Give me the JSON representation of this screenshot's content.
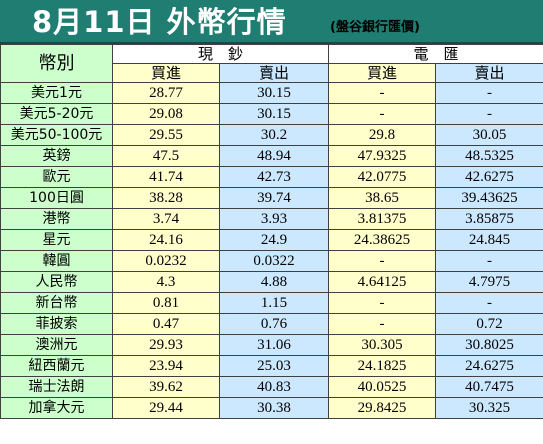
{
  "header": {
    "title": "8月11日 外幣行情",
    "subtitle": "(盤谷銀行匯價)"
  },
  "table": {
    "currency_header": "幣別",
    "groups": [
      "現　鈔",
      "電　匯"
    ],
    "subheaders": [
      "買進",
      "賣出",
      "買進",
      "賣出"
    ],
    "rows": [
      {
        "currency": "美元1元",
        "cash_buy": "28.77",
        "cash_sell": "30.15",
        "tt_buy": "-",
        "tt_sell": "-"
      },
      {
        "currency": "美元5-20元",
        "cash_buy": "29.08",
        "cash_sell": "30.15",
        "tt_buy": "-",
        "tt_sell": "-"
      },
      {
        "currency": "美元50-100元",
        "cash_buy": "29.55",
        "cash_sell": "30.2",
        "tt_buy": "29.8",
        "tt_sell": "30.05"
      },
      {
        "currency": "英鎊",
        "cash_buy": "47.5",
        "cash_sell": "48.94",
        "tt_buy": "47.9325",
        "tt_sell": "48.5325"
      },
      {
        "currency": "歐元",
        "cash_buy": "41.74",
        "cash_sell": "42.73",
        "tt_buy": "42.0775",
        "tt_sell": "42.6275"
      },
      {
        "currency": "100日圓",
        "cash_buy": "38.28",
        "cash_sell": "39.74",
        "tt_buy": "38.65",
        "tt_sell": "39.43625"
      },
      {
        "currency": "港幣",
        "cash_buy": "3.74",
        "cash_sell": "3.93",
        "tt_buy": "3.81375",
        "tt_sell": "3.85875"
      },
      {
        "currency": "星元",
        "cash_buy": "24.16",
        "cash_sell": "24.9",
        "tt_buy": "24.38625",
        "tt_sell": "24.845"
      },
      {
        "currency": "韓圓",
        "cash_buy": "0.0232",
        "cash_sell": "0.0322",
        "tt_buy": "-",
        "tt_sell": "-"
      },
      {
        "currency": "人民幣",
        "cash_buy": "4.3",
        "cash_sell": "4.88",
        "tt_buy": "4.64125",
        "tt_sell": "4.7975"
      },
      {
        "currency": "新台幣",
        "cash_buy": "0.81",
        "cash_sell": "1.15",
        "tt_buy": "-",
        "tt_sell": "-"
      },
      {
        "currency": "菲披索",
        "cash_buy": "0.47",
        "cash_sell": "0.76",
        "tt_buy": "-",
        "tt_sell": "0.72"
      },
      {
        "currency": "澳洲元",
        "cash_buy": "29.93",
        "cash_sell": "31.06",
        "tt_buy": "30.305",
        "tt_sell": "30.8025"
      },
      {
        "currency": "紐西蘭元",
        "cash_buy": "23.94",
        "cash_sell": "25.03",
        "tt_buy": "24.1825",
        "tt_sell": "24.6275"
      },
      {
        "currency": "瑞士法朗",
        "cash_buy": "39.62",
        "cash_sell": "40.83",
        "tt_buy": "40.0525",
        "tt_sell": "40.7475"
      },
      {
        "currency": "加拿大元",
        "cash_buy": "29.44",
        "cash_sell": "30.38",
        "tt_buy": "29.8425",
        "tt_sell": "30.325"
      }
    ]
  },
  "colors": {
    "title_bar": "#1f7d72",
    "currency_column": "#ccffcc",
    "cash_columns": "#ffffcc",
    "telegraphic_columns": "#cce8ff"
  }
}
